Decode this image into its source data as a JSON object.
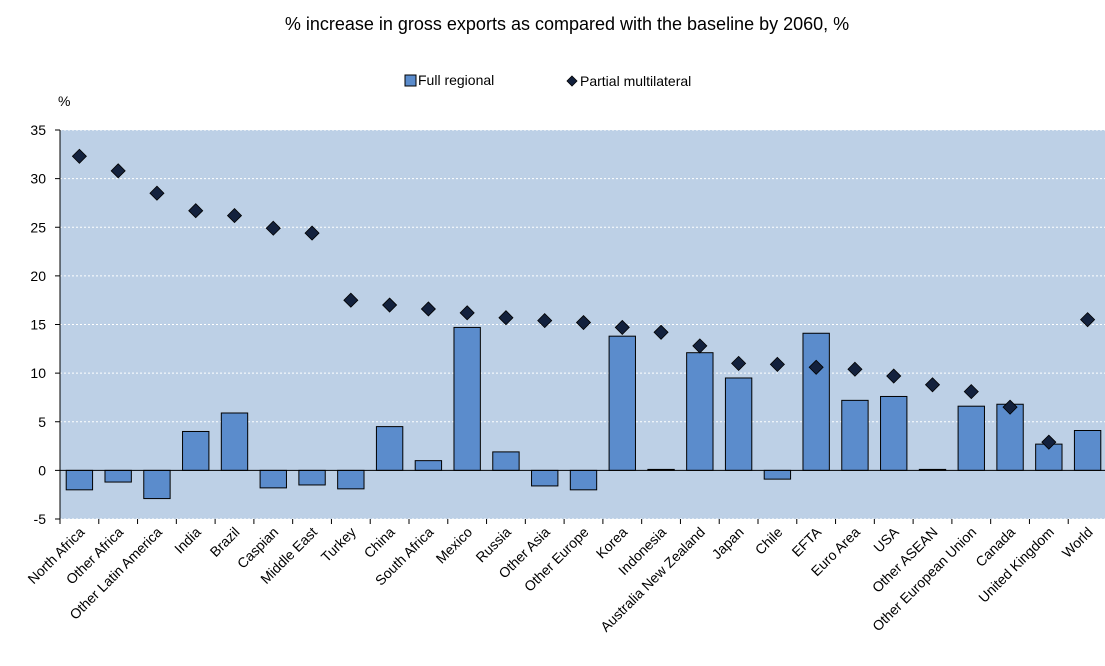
{
  "chart_data": {
    "type": "bar",
    "title": "% increase in gross exports as compared with the baseline by 2060, %",
    "ylabel": "%",
    "xlabel": "",
    "ylim": [
      -5,
      35
    ],
    "yticks": [
      -5,
      0,
      5,
      10,
      15,
      20,
      25,
      30,
      35
    ],
    "grid": true,
    "legend_position": "top-center",
    "colors": {
      "plot_background": "#bdd0e6",
      "bar_fill": "#5b8ccc",
      "bar_stroke": "#000000",
      "marker_fill": "#13213d",
      "grid": "#ffffff"
    },
    "categories": [
      "North Africa",
      "Other Africa",
      "Other Latin America",
      "India",
      "Brazil",
      "Caspian",
      "Middle East",
      "Turkey",
      "China",
      "South Africa",
      "Mexico",
      "Russia",
      "Other Asia",
      "Other Europe",
      "Korea",
      "Indonesia",
      "Australia New Zealand",
      "Japan",
      "Chile",
      "EFTA",
      "Euro Area",
      "USA",
      "Other ASEAN",
      "Other European Union",
      "Canada",
      "United Kingdom",
      "World"
    ],
    "series": [
      {
        "name": "Full regional",
        "kind": "bar",
        "values": [
          -2.0,
          -1.2,
          -2.9,
          4.0,
          5.9,
          -1.8,
          -1.5,
          -1.9,
          4.5,
          1.0,
          14.7,
          1.9,
          -1.6,
          -2.0,
          13.8,
          0.1,
          12.1,
          9.5,
          -0.9,
          14.1,
          7.2,
          7.6,
          0.1,
          6.6,
          6.8,
          2.7,
          4.1
        ]
      },
      {
        "name": "Partial multilateral",
        "kind": "marker",
        "values": [
          32.3,
          30.8,
          28.5,
          26.7,
          26.2,
          24.9,
          24.4,
          17.5,
          17.0,
          16.6,
          16.2,
          15.7,
          15.4,
          15.2,
          14.7,
          14.2,
          12.8,
          11.0,
          10.9,
          10.6,
          10.4,
          9.7,
          8.8,
          8.1,
          6.5,
          2.9,
          15.5
        ]
      }
    ]
  }
}
